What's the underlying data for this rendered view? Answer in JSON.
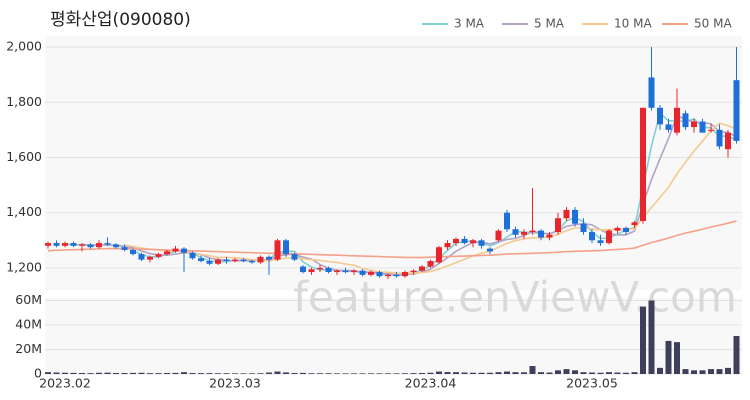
{
  "chart_data": [
    {
      "type": "candlestick",
      "title": "평화산업(090080)",
      "watermark": "feature.enViewV.com",
      "open": [
        1280,
        1290,
        1280,
        1290,
        1280,
        1285,
        1275,
        1290,
        1285,
        1275,
        1265,
        1250,
        1230,
        1240,
        1250,
        1260,
        1270,
        1255,
        1235,
        1225,
        1215,
        1230,
        1225,
        1230,
        1225,
        1220,
        1240,
        1230,
        1300,
        1250,
        1205,
        1185,
        1195,
        1200,
        1185,
        1190,
        1185,
        1190,
        1175,
        1185,
        1170,
        1175,
        1170,
        1185,
        1190,
        1205,
        1220,
        1275,
        1290,
        1305,
        1290,
        1300,
        1270,
        1300,
        1400,
        1340,
        1320,
        1330,
        1335,
        1310,
        1330,
        1380,
        1410,
        1360,
        1330,
        1300,
        1290,
        1335,
        1345,
        1355,
        1370,
        1890,
        1780,
        1720,
        1690,
        1760,
        1710,
        1730,
        1700,
        1700,
        1630,
        1880
      ],
      "high": [
        1295,
        1300,
        1295,
        1295,
        1290,
        1290,
        1300,
        1310,
        1290,
        1285,
        1270,
        1255,
        1245,
        1255,
        1265,
        1280,
        1275,
        1260,
        1245,
        1235,
        1235,
        1240,
        1235,
        1235,
        1230,
        1245,
        1245,
        1305,
        1305,
        1255,
        1210,
        1200,
        1210,
        1205,
        1195,
        1200,
        1195,
        1195,
        1190,
        1190,
        1180,
        1185,
        1190,
        1195,
        1210,
        1230,
        1280,
        1300,
        1310,
        1315,
        1305,
        1305,
        1275,
        1340,
        1410,
        1350,
        1340,
        1490,
        1340,
        1330,
        1400,
        1420,
        1420,
        1380,
        1340,
        1320,
        1340,
        1350,
        1350,
        1370,
        1780,
        2000,
        1790,
        1740,
        1850,
        1770,
        1740,
        1740,
        1720,
        1720,
        1700,
        2000
      ],
      "low": [
        1270,
        1275,
        1275,
        1275,
        1260,
        1270,
        1270,
        1280,
        1270,
        1260,
        1245,
        1225,
        1220,
        1235,
        1245,
        1255,
        1185,
        1230,
        1220,
        1210,
        1210,
        1215,
        1220,
        1220,
        1215,
        1215,
        1175,
        1225,
        1240,
        1225,
        1180,
        1175,
        1185,
        1180,
        1175,
        1180,
        1175,
        1170,
        1170,
        1165,
        1160,
        1165,
        1165,
        1175,
        1185,
        1200,
        1215,
        1265,
        1280,
        1285,
        1275,
        1270,
        1250,
        1295,
        1330,
        1310,
        1305,
        1320,
        1300,
        1300,
        1320,
        1370,
        1350,
        1320,
        1290,
        1280,
        1285,
        1325,
        1320,
        1345,
        1360,
        1770,
        1700,
        1690,
        1680,
        1700,
        1690,
        1690,
        1690,
        1630,
        1600,
        1650
      ],
      "close": [
        1290,
        1280,
        1290,
        1280,
        1285,
        1275,
        1290,
        1285,
        1275,
        1265,
        1250,
        1230,
        1240,
        1250,
        1260,
        1270,
        1255,
        1235,
        1225,
        1215,
        1230,
        1225,
        1230,
        1225,
        1220,
        1240,
        1230,
        1300,
        1250,
        1230,
        1185,
        1195,
        1200,
        1185,
        1190,
        1185,
        1190,
        1175,
        1185,
        1170,
        1175,
        1170,
        1185,
        1190,
        1205,
        1225,
        1275,
        1290,
        1305,
        1290,
        1300,
        1280,
        1260,
        1335,
        1340,
        1320,
        1330,
        1335,
        1310,
        1320,
        1380,
        1410,
        1360,
        1330,
        1300,
        1290,
        1335,
        1345,
        1330,
        1365,
        1780,
        1780,
        1720,
        1700,
        1780,
        1710,
        1730,
        1690,
        1700,
        1640,
        1690,
        1660
      ],
      "up_color": "#e8242c",
      "down_color": "#1e6fd9",
      "series": [
        {
          "name": "3 MA",
          "color": "#7fd1d1",
          "values": [
            null,
            null,
            1287,
            1283,
            1285,
            1280,
            1283,
            1283,
            1283,
            1275,
            1263,
            1248,
            1240,
            1240,
            1250,
            1260,
            1262,
            1253,
            1238,
            1225,
            1223,
            1223,
            1228,
            1227,
            1225,
            1228,
            1230,
            1257,
            1260,
            1260,
            1222,
            1203,
            1193,
            1193,
            1192,
            1187,
            1188,
            1183,
            1183,
            1177,
            1177,
            1172,
            1177,
            1182,
            1193,
            1207,
            1235,
            1263,
            1290,
            1295,
            1298,
            1290,
            1280,
            1292,
            1312,
            1332,
            1330,
            1328,
            1325,
            1322,
            1337,
            1370,
            1383,
            1367,
            1330,
            1307,
            1308,
            1323,
            1337,
            1347,
            1492,
            1642,
            1760,
            1733,
            1733,
            1730,
            1740,
            1710,
            1707,
            1677,
            1677,
            1663
          ]
        },
        {
          "name": "5 MA",
          "color": "#b4a2c4",
          "values": [
            null,
            null,
            null,
            null,
            1285,
            1282,
            1284,
            1283,
            1283,
            1278,
            1273,
            1261,
            1252,
            1247,
            1246,
            1250,
            1255,
            1254,
            1249,
            1236,
            1230,
            1228,
            1225,
            1226,
            1226,
            1228,
            1229,
            1243,
            1248,
            1250,
            1239,
            1232,
            1212,
            1199,
            1191,
            1191,
            1190,
            1185,
            1185,
            1181,
            1179,
            1175,
            1177,
            1178,
            1185,
            1195,
            1216,
            1237,
            1260,
            1277,
            1292,
            1293,
            1287,
            1295,
            1303,
            1307,
            1317,
            1332,
            1327,
            1323,
            1335,
            1351,
            1356,
            1360,
            1356,
            1338,
            1323,
            1320,
            1320,
            1333,
            1431,
            1520,
            1595,
            1669,
            1752,
            1738,
            1728,
            1726,
            1722,
            1694,
            1690,
            1676
          ]
        },
        {
          "name": "10 MA",
          "color": "#f5c98f",
          "values": [
            null,
            null,
            null,
            null,
            null,
            null,
            null,
            null,
            null,
            1282,
            1278,
            1272,
            1268,
            1265,
            1262,
            1262,
            1259,
            1254,
            1249,
            1244,
            1238,
            1238,
            1237,
            1234,
            1230,
            1227,
            1225,
            1232,
            1235,
            1237,
            1233,
            1230,
            1227,
            1223,
            1220,
            1214,
            1210,
            1198,
            1191,
            1185,
            1184,
            1182,
            1181,
            1181,
            1183,
            1187,
            1196,
            1207,
            1219,
            1231,
            1244,
            1253,
            1260,
            1275,
            1289,
            1299,
            1305,
            1309,
            1310,
            1313,
            1322,
            1335,
            1345,
            1345,
            1341,
            1338,
            1338,
            1339,
            1339,
            1342,
            1382,
            1419,
            1455,
            1492,
            1541,
            1583,
            1623,
            1659,
            1696,
            1724,
            1715,
            1703
          ]
        },
        {
          "name": "50 MA",
          "color": "#f5a088",
          "values": [
            1262,
            1264,
            1265,
            1266,
            1267,
            1268,
            1269,
            1270,
            1270,
            1270,
            1269,
            1268,
            1267,
            1266,
            1265,
            1264,
            1263,
            1262,
            1261,
            1260,
            1259,
            1258,
            1257,
            1256,
            1255,
            1254,
            1253,
            1253,
            1252,
            1251,
            1250,
            1249,
            1248,
            1247,
            1246,
            1245,
            1244,
            1243,
            1242,
            1241,
            1240,
            1239,
            1238,
            1238,
            1238,
            1239,
            1240,
            1241,
            1242,
            1243,
            1244,
            1245,
            1246,
            1248,
            1250,
            1251,
            1252,
            1253,
            1254,
            1255,
            1257,
            1259,
            1260,
            1261,
            1262,
            1263,
            1265,
            1267,
            1269,
            1272,
            1282,
            1292,
            1300,
            1308,
            1318,
            1326,
            1333,
            1340,
            1348,
            1355,
            1362,
            1370
          ]
        }
      ],
      "legend": "top-right",
      "grid": true,
      "ylim": [
        1120,
        2040
      ],
      "yticks": [
        {
          "value": 1200,
          "label": "1,200"
        },
        {
          "value": 1400,
          "label": "1,400"
        },
        {
          "value": 1600,
          "label": "1,600"
        },
        {
          "value": 1800,
          "label": "1,800"
        },
        {
          "value": 2000,
          "label": "2,000"
        }
      ]
    },
    {
      "type": "bar",
      "color": "#3d3f5c",
      "categories": [
        null,
        null,
        "2023.02",
        null,
        null,
        null,
        null,
        null,
        null,
        null,
        null,
        null,
        null,
        null,
        null,
        null,
        null,
        null,
        null,
        null,
        null,
        null,
        "2023.03",
        null,
        null,
        null,
        null,
        null,
        null,
        null,
        null,
        null,
        null,
        null,
        null,
        null,
        null,
        null,
        null,
        null,
        null,
        null,
        null,
        null,
        null,
        "2023.04",
        null,
        null,
        null,
        null,
        null,
        null,
        null,
        null,
        null,
        null,
        null,
        null,
        null,
        null,
        null,
        null,
        null,
        null,
        "2023.05",
        null,
        null,
        null,
        null,
        null,
        null,
        null,
        null,
        null,
        null,
        null,
        null,
        null,
        null,
        null,
        null,
        null
      ],
      "values": [
        1500000,
        1200000,
        1000000,
        900000,
        800000,
        700000,
        1000000,
        1100000,
        800000,
        800000,
        900000,
        1000000,
        700000,
        700000,
        800000,
        900000,
        1500000,
        800000,
        700000,
        700000,
        600000,
        600000,
        500000,
        500000,
        500000,
        600000,
        1200000,
        2000000,
        1300000,
        800000,
        900000,
        600000,
        600000,
        600000,
        500000,
        500000,
        500000,
        500000,
        500000,
        500000,
        500000,
        500000,
        600000,
        700000,
        800000,
        1000000,
        2000000,
        1600000,
        1500000,
        1200000,
        1000000,
        1000000,
        1000000,
        1500000,
        2000000,
        1500000,
        1400000,
        6500000,
        1500000,
        1200000,
        3000000,
        4000000,
        3000000,
        1500000,
        1200000,
        1000000,
        1500000,
        1200000,
        1000000,
        1500000,
        55000000,
        60000000,
        5000000,
        27000000,
        26000000,
        4000000,
        3000000,
        3000000,
        4000000,
        4000000,
        5000000,
        31000000
      ],
      "grid": true,
      "ylim": [
        0,
        62000000
      ],
      "yticks": [
        0,
        {
          "value": 20000000,
          "label": "20M"
        },
        {
          "value": 40000000,
          "label": "40M"
        },
        {
          "value": 60000000,
          "label": "60M"
        }
      ]
    }
  ]
}
